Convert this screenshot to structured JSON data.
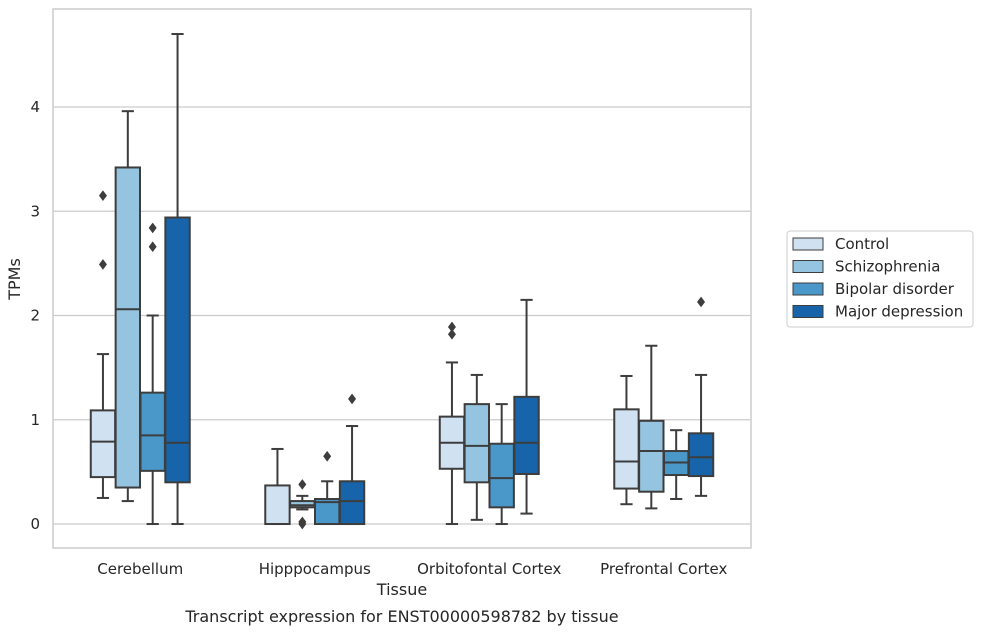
{
  "chart_data": {
    "type": "boxplot",
    "title": "Transcript expression for ENST00000598782 by tissue",
    "xlabel": "Tissue",
    "ylabel": "TPMs",
    "ylim": [
      -0.23,
      4.94
    ],
    "yticks": [
      0,
      1,
      2,
      3,
      4
    ],
    "grid": "horizontal",
    "legend_position": "right",
    "categories": [
      "Cerebellum",
      "Hipppocampus",
      "Orbitofontal Cortex",
      "Prefrontal Cortex"
    ],
    "series": [
      {
        "name": "Control",
        "color": "#d0e1f2",
        "boxes": [
          {
            "whislo": 0.25,
            "q1": 0.45,
            "med": 0.79,
            "q3": 1.09,
            "whishi": 1.63,
            "fliers": [
              2.49,
              3.15
            ]
          },
          {
            "whislo": 0.0,
            "q1": 0.0,
            "med": 0.0,
            "q3": 0.37,
            "whishi": 0.72,
            "fliers": []
          },
          {
            "whislo": 0.0,
            "q1": 0.53,
            "med": 0.78,
            "q3": 1.03,
            "whishi": 1.55,
            "fliers": [
              1.82,
              1.89
            ]
          },
          {
            "whislo": 0.19,
            "q1": 0.34,
            "med": 0.6,
            "q3": 1.1,
            "whishi": 1.42,
            "fliers": []
          }
        ]
      },
      {
        "name": "Schizophrenia",
        "color": "#94c4df",
        "boxes": [
          {
            "whislo": 0.22,
            "q1": 0.35,
            "med": 2.06,
            "q3": 3.42,
            "whishi": 3.96,
            "fliers": []
          },
          {
            "whislo": 0.14,
            "q1": 0.16,
            "med": 0.18,
            "q3": 0.22,
            "whishi": 0.27,
            "fliers": [
              0.0,
              0.02,
              0.38
            ]
          },
          {
            "whislo": 0.04,
            "q1": 0.4,
            "med": 0.75,
            "q3": 1.15,
            "whishi": 1.43,
            "fliers": []
          },
          {
            "whislo": 0.15,
            "q1": 0.31,
            "med": 0.7,
            "q3": 0.99,
            "whishi": 1.71,
            "fliers": []
          }
        ]
      },
      {
        "name": "Bipolar disorder",
        "color": "#4a98c9",
        "boxes": [
          {
            "whislo": 0.0,
            "q1": 0.51,
            "med": 0.85,
            "q3": 1.26,
            "whishi": 2.0,
            "fliers": [
              2.66,
              2.84
            ]
          },
          {
            "whislo": 0.0,
            "q1": 0.0,
            "med": 0.21,
            "q3": 0.24,
            "whishi": 0.41,
            "fliers": [
              0.65
            ]
          },
          {
            "whislo": 0.0,
            "q1": 0.16,
            "med": 0.44,
            "q3": 0.77,
            "whishi": 1.15,
            "fliers": []
          },
          {
            "whislo": 0.24,
            "q1": 0.47,
            "med": 0.59,
            "q3": 0.7,
            "whishi": 0.9,
            "fliers": []
          }
        ]
      },
      {
        "name": "Major depression",
        "color": "#1764ab",
        "boxes": [
          {
            "whislo": 0.0,
            "q1": 0.4,
            "med": 0.78,
            "q3": 2.94,
            "whishi": 4.7,
            "fliers": []
          },
          {
            "whislo": 0.0,
            "q1": 0.0,
            "med": 0.22,
            "q3": 0.41,
            "whishi": 0.94,
            "fliers": [
              1.2
            ]
          },
          {
            "whislo": 0.1,
            "q1": 0.48,
            "med": 0.78,
            "q3": 1.22,
            "whishi": 2.15,
            "fliers": []
          },
          {
            "whislo": 0.27,
            "q1": 0.46,
            "med": 0.64,
            "q3": 0.87,
            "whishi": 1.43,
            "fliers": [
              2.13
            ]
          }
        ]
      }
    ]
  }
}
